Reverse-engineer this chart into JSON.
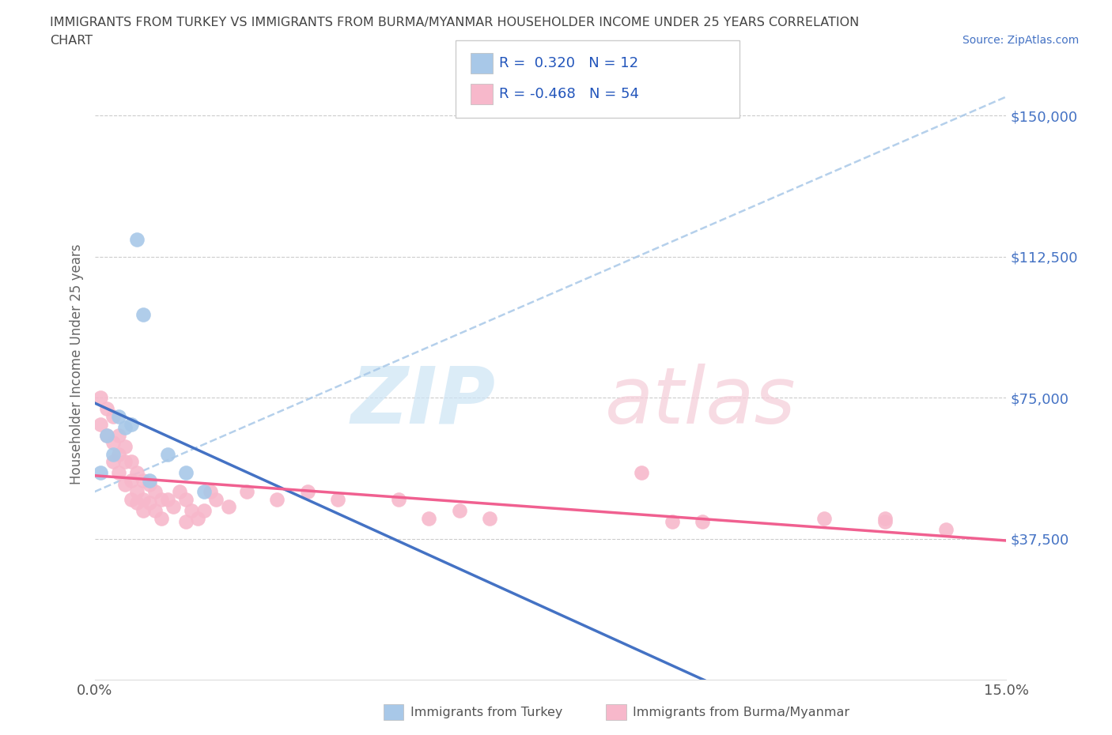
{
  "title_line1": "IMMIGRANTS FROM TURKEY VS IMMIGRANTS FROM BURMA/MYANMAR HOUSEHOLDER INCOME UNDER 25 YEARS CORRELATION",
  "title_line2": "CHART",
  "source_text": "Source: ZipAtlas.com",
  "ylabel": "Householder Income Under 25 years",
  "xmin": 0.0,
  "xmax": 0.15,
  "ymin": 0,
  "ymax": 168000,
  "yticks": [
    0,
    37500,
    75000,
    112500,
    150000
  ],
  "ytick_labels": [
    "",
    "$37,500",
    "$75,000",
    "$112,500",
    "$150,000"
  ],
  "xticks": [
    0.0,
    0.03,
    0.06,
    0.09,
    0.12,
    0.15
  ],
  "xtick_labels": [
    "0.0%",
    "",
    "",
    "",
    "",
    "15.0%"
  ],
  "turkey_color": "#a8c8e8",
  "burma_color": "#f7b8cb",
  "turkey_line_color": "#4472c4",
  "burma_line_color": "#f06090",
  "dashed_line_color": "#a8c8e8",
  "grid_color": "#cccccc",
  "R_turkey": 0.32,
  "N_turkey": 12,
  "R_burma": -0.468,
  "N_burma": 54,
  "turkey_scatter_x": [
    0.001,
    0.002,
    0.003,
    0.004,
    0.005,
    0.006,
    0.007,
    0.008,
    0.009,
    0.012,
    0.015,
    0.018
  ],
  "turkey_scatter_y": [
    55000,
    65000,
    60000,
    70000,
    67000,
    68000,
    117000,
    97000,
    53000,
    60000,
    55000,
    50000
  ],
  "burma_scatter_x": [
    0.001,
    0.001,
    0.002,
    0.002,
    0.003,
    0.003,
    0.003,
    0.004,
    0.004,
    0.004,
    0.005,
    0.005,
    0.005,
    0.006,
    0.006,
    0.006,
    0.007,
    0.007,
    0.007,
    0.008,
    0.008,
    0.008,
    0.009,
    0.009,
    0.01,
    0.01,
    0.011,
    0.011,
    0.012,
    0.013,
    0.014,
    0.015,
    0.015,
    0.016,
    0.017,
    0.018,
    0.019,
    0.02,
    0.022,
    0.025,
    0.03,
    0.035,
    0.04,
    0.05,
    0.055,
    0.06,
    0.065,
    0.09,
    0.095,
    0.1,
    0.12,
    0.13,
    0.13,
    0.14
  ],
  "burma_scatter_y": [
    75000,
    68000,
    72000,
    65000,
    70000,
    63000,
    58000,
    65000,
    60000,
    55000,
    62000,
    58000,
    52000,
    58000,
    53000,
    48000,
    55000,
    50000,
    47000,
    53000,
    48000,
    45000,
    52000,
    47000,
    50000,
    45000,
    48000,
    43000,
    48000,
    46000,
    50000,
    48000,
    42000,
    45000,
    43000,
    45000,
    50000,
    48000,
    46000,
    50000,
    48000,
    50000,
    48000,
    48000,
    43000,
    45000,
    43000,
    55000,
    42000,
    42000,
    43000,
    43000,
    42000,
    40000
  ]
}
